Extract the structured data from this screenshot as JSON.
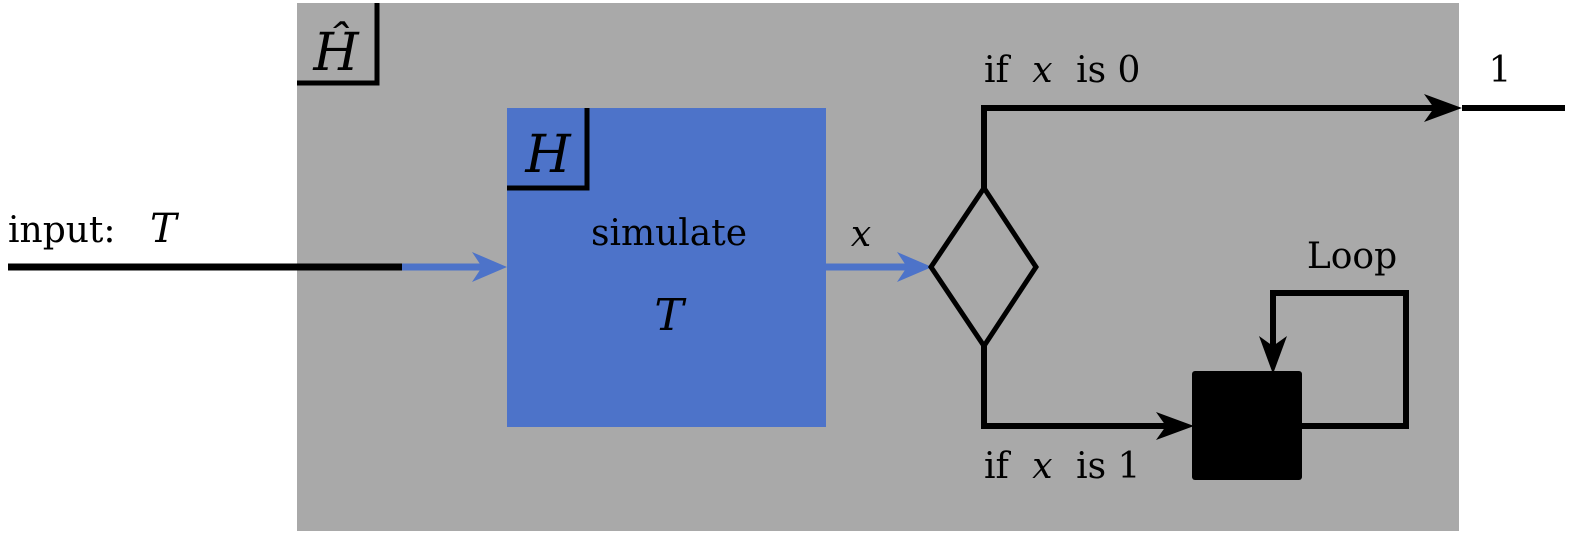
{
  "outer_box": {
    "label": "Ĥ",
    "fill": "#a9a9a9"
  },
  "inner_box": {
    "label": "H",
    "fill": "#4d73c9",
    "line1": "simulate",
    "line2": "T"
  },
  "input": {
    "prefix": "input:",
    "symbol": "T"
  },
  "x_label": "x",
  "branch_zero": {
    "prefix": "if",
    "var": "x",
    "suffix": "is 0",
    "output": "1"
  },
  "branch_one": {
    "prefix": "if",
    "var": "x",
    "suffix": "is 1"
  },
  "loop": {
    "label": "Loop",
    "fill": "#000000"
  },
  "arrow_blue": "#4d73c9",
  "line_color": "#000000"
}
